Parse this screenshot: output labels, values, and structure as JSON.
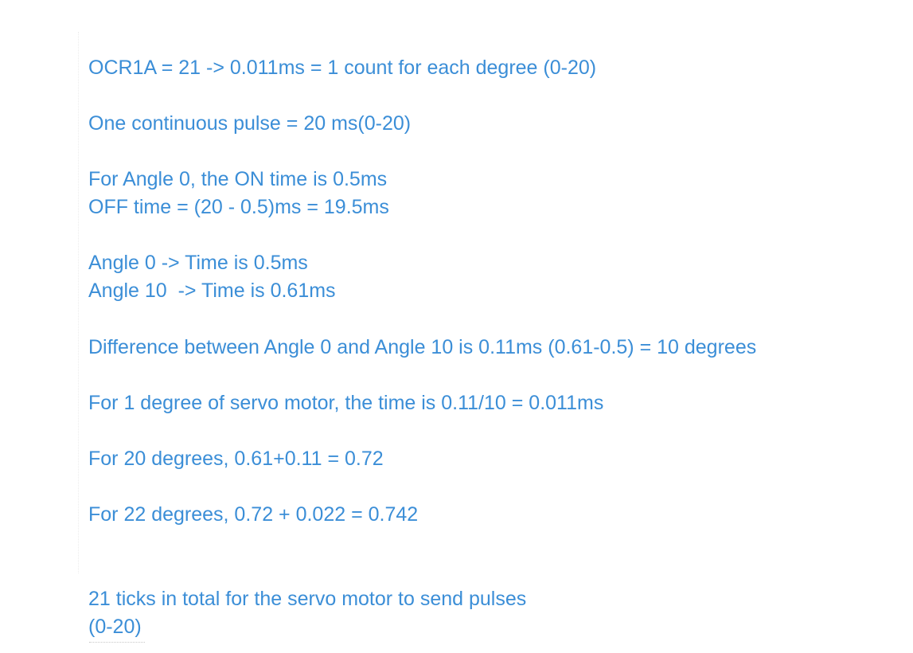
{
  "note": {
    "lines": [
      "OCR1A = 21 -> 0.011ms = 1 count for each degree (0-20)",
      "One continuous pulse = 20 ms(0-20)",
      "For Angle 0, the ON time is 0.5ms",
      "OFF time = (20 - 0.5)ms = 19.5ms",
      "Angle 0 -> Time is 0.5ms",
      "Angle 10  -> Time is 0.61ms",
      "Difference between Angle 0 and Angle 10 is 0.11ms (0.61-0.5) = 10 degrees",
      "For 1 degree of servo motor, the time is 0.11/10 = 0.011ms",
      "For 20 degrees, 0.61+0.11 = 0.72",
      "For 22 degrees, 0.72 + 0.022 = 0.742",
      "21 ticks in total for the servo motor to send pulses",
      "(0-20)"
    ]
  }
}
